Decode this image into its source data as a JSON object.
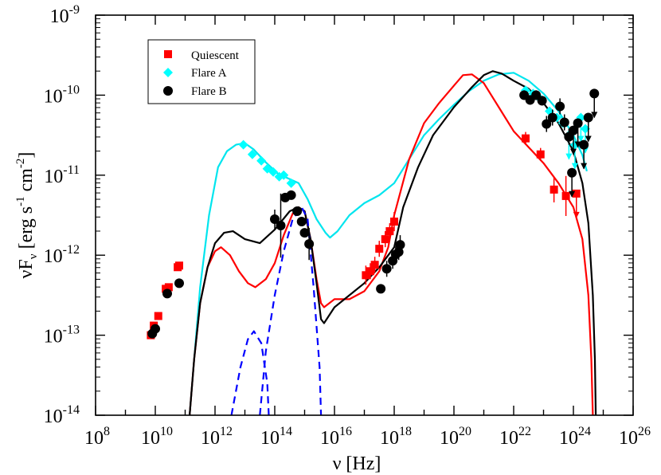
{
  "chart_data": {
    "type": "scatter",
    "xscale": "log",
    "yscale": "log",
    "xlim_exp": [
      8,
      26
    ],
    "ylim_exp": [
      -14,
      -9
    ],
    "xlabel": "ν [Hz]",
    "ylabel_parts": {
      "nu": "ν",
      "F": "F",
      "sub": "ν",
      "unit_open": " [erg s",
      "exp1": "-1",
      "unit_mid": " cm",
      "exp2": "-2",
      "unit_close": "]"
    },
    "x_ticks": [
      8,
      10,
      12,
      14,
      16,
      18,
      20,
      22,
      24,
      26
    ],
    "y_ticks": [
      -14,
      -13,
      -12,
      -11,
      -10,
      -9
    ],
    "legend": [
      {
        "label": "Quiescent",
        "marker": "square",
        "color": "#ff0000"
      },
      {
        "label": "Flare A",
        "marker": "diamond",
        "color": "#00ffff"
      },
      {
        "label": "Flare B",
        "marker": "circle",
        "color": "#000000"
      }
    ],
    "series": [
      {
        "name": "Quiescent",
        "marker": "square",
        "color": "#ff0000",
        "points": [
          {
            "x": 9.85,
            "y": -13.0
          },
          {
            "x": 9.95,
            "y": -12.88
          },
          {
            "x": 10.1,
            "y": -12.76
          },
          {
            "x": 10.35,
            "y": -12.42
          },
          {
            "x": 10.45,
            "y": -12.4
          },
          {
            "x": 10.75,
            "y": -12.15
          },
          {
            "x": 10.8,
            "y": -12.13
          },
          {
            "x": 17.05,
            "y": -12.25,
            "err": 0.12
          },
          {
            "x": 17.2,
            "y": -12.2,
            "err": 0.1
          },
          {
            "x": 17.35,
            "y": -12.12,
            "err": 0.1
          },
          {
            "x": 17.5,
            "y": -11.92,
            "err": 0.1
          },
          {
            "x": 17.7,
            "y": -11.8,
            "err": 0.1
          },
          {
            "x": 17.85,
            "y": -11.7,
            "err": 0.1
          },
          {
            "x": 18.0,
            "y": -11.58,
            "err": 0.12
          },
          {
            "x": 22.4,
            "y": -10.54,
            "err": 0.08
          },
          {
            "x": 22.9,
            "y": -10.74,
            "err": 0.08
          },
          {
            "x": 23.35,
            "y": -11.18,
            "err": 0.16
          },
          {
            "x": 23.75,
            "y": -11.26,
            "err": 0.25
          },
          {
            "x": 24.1,
            "y": -11.23,
            "ul": true
          }
        ]
      },
      {
        "name": "Flare A",
        "marker": "diamond",
        "color": "#00ffff",
        "points": [
          {
            "x": 12.95,
            "y": -10.62
          },
          {
            "x": 13.25,
            "y": -10.74
          },
          {
            "x": 13.55,
            "y": -10.82
          },
          {
            "x": 13.75,
            "y": -10.92
          },
          {
            "x": 13.95,
            "y": -10.96
          },
          {
            "x": 14.15,
            "y": -11.02
          },
          {
            "x": 14.3,
            "y": -11.0
          },
          {
            "x": 14.55,
            "y": -11.1
          },
          {
            "x": 22.4,
            "y": -9.94
          },
          {
            "x": 22.65,
            "y": -9.98
          },
          {
            "x": 22.9,
            "y": -10.05
          },
          {
            "x": 23.2,
            "y": -10.2
          },
          {
            "x": 23.45,
            "y": -10.28
          },
          {
            "x": 23.65,
            "y": -10.35
          },
          {
            "x": 23.85,
            "y": -10.5,
            "ul": true
          },
          {
            "x": 24.05,
            "y": -10.62,
            "ul": true
          },
          {
            "x": 24.25,
            "y": -10.28,
            "ul": true
          },
          {
            "x": 24.4,
            "y": -10.42,
            "ul": true
          }
        ]
      },
      {
        "name": "Flare B",
        "marker": "circle",
        "color": "#000000",
        "points": [
          {
            "x": 9.9,
            "y": -12.98
          },
          {
            "x": 10.0,
            "y": -12.92
          },
          {
            "x": 10.4,
            "y": -12.48
          },
          {
            "x": 10.8,
            "y": -12.35
          },
          {
            "x": 14.0,
            "y": -11.55,
            "err": 0.12
          },
          {
            "x": 14.2,
            "y": -11.63,
            "err": 0.4
          },
          {
            "x": 14.35,
            "y": -11.28
          },
          {
            "x": 14.55,
            "y": -11.25
          },
          {
            "x": 14.75,
            "y": -11.45
          },
          {
            "x": 14.9,
            "y": -11.58
          },
          {
            "x": 15.0,
            "y": -11.72
          },
          {
            "x": 15.15,
            "y": -11.86,
            "err": 0.2
          },
          {
            "x": 17.55,
            "y": -12.42,
            "err": 0.05
          },
          {
            "x": 17.75,
            "y": -12.17,
            "err": 0.1
          },
          {
            "x": 17.95,
            "y": -12.07,
            "err": 0.1
          },
          {
            "x": 18.05,
            "y": -11.99,
            "err": 0.1
          },
          {
            "x": 18.15,
            "y": -11.96,
            "err": 0.1
          },
          {
            "x": 18.2,
            "y": -11.87,
            "err": 0.12
          },
          {
            "x": 22.35,
            "y": -10.0,
            "err": 0.06
          },
          {
            "x": 22.55,
            "y": -10.06,
            "err": 0.06
          },
          {
            "x": 22.75,
            "y": -10.0,
            "err": 0.06
          },
          {
            "x": 22.95,
            "y": -10.07,
            "err": 0.06
          },
          {
            "x": 23.1,
            "y": -10.36,
            "err": 0.1
          },
          {
            "x": 23.3,
            "y": -10.28,
            "err": 0.1
          },
          {
            "x": 23.55,
            "y": -10.14,
            "err": 0.1
          },
          {
            "x": 23.7,
            "y": -10.34,
            "err": 0.1
          },
          {
            "x": 23.85,
            "y": -10.52,
            "err": 0.1
          },
          {
            "x": 24.0,
            "y": -10.44,
            "ul": true
          },
          {
            "x": 24.15,
            "y": -10.35,
            "ul": true
          },
          {
            "x": 24.35,
            "y": -10.62,
            "ul": true
          },
          {
            "x": 24.5,
            "y": -10.28,
            "ul": true
          },
          {
            "x": 24.7,
            "y": -9.98,
            "ul": true
          },
          {
            "x": 23.95,
            "y": -10.97,
            "ul": true
          }
        ]
      }
    ],
    "model_curves": [
      {
        "name": "Flare A model",
        "color": "#00e5ee",
        "dash": "solid",
        "points": [
          [
            11.15,
            -14
          ],
          [
            11.3,
            -13.3
          ],
          [
            11.5,
            -12.4
          ],
          [
            11.8,
            -11.5
          ],
          [
            12.1,
            -10.9
          ],
          [
            12.4,
            -10.7
          ],
          [
            12.7,
            -10.62
          ],
          [
            13.0,
            -10.6
          ],
          [
            13.3,
            -10.68
          ],
          [
            13.7,
            -10.84
          ],
          [
            14.1,
            -10.98
          ],
          [
            14.5,
            -11.05
          ],
          [
            14.8,
            -11.1
          ],
          [
            15.1,
            -11.3
          ],
          [
            15.4,
            -11.55
          ],
          [
            15.7,
            -11.72
          ],
          [
            15.85,
            -11.78
          ],
          [
            16.1,
            -11.7
          ],
          [
            16.5,
            -11.5
          ],
          [
            17.0,
            -11.35
          ],
          [
            17.5,
            -11.25
          ],
          [
            18.0,
            -11.1
          ],
          [
            18.5,
            -10.8
          ],
          [
            19.0,
            -10.5
          ],
          [
            19.5,
            -10.3
          ],
          [
            20.0,
            -10.12
          ],
          [
            20.5,
            -9.95
          ],
          [
            21.0,
            -9.82
          ],
          [
            21.5,
            -9.74
          ],
          [
            22.0,
            -9.72
          ],
          [
            22.5,
            -9.82
          ],
          [
            23.0,
            -9.98
          ],
          [
            23.5,
            -10.2
          ],
          [
            24.0,
            -10.5
          ],
          [
            24.3,
            -10.75
          ],
          [
            24.45,
            -10.95
          ]
        ]
      },
      {
        "name": "Quiescent model",
        "color": "#ff0000",
        "dash": "solid",
        "points": [
          [
            11.15,
            -14
          ],
          [
            11.3,
            -13.3
          ],
          [
            11.5,
            -12.6
          ],
          [
            11.75,
            -12.15
          ],
          [
            12.0,
            -11.95
          ],
          [
            12.2,
            -11.9
          ],
          [
            12.5,
            -12.0
          ],
          [
            12.8,
            -12.2
          ],
          [
            13.1,
            -12.35
          ],
          [
            13.35,
            -12.4
          ],
          [
            13.7,
            -12.3
          ],
          [
            14.0,
            -12.1
          ],
          [
            14.3,
            -11.75
          ],
          [
            14.6,
            -11.48
          ],
          [
            14.8,
            -11.4
          ],
          [
            15.0,
            -11.45
          ],
          [
            15.2,
            -11.8
          ],
          [
            15.4,
            -12.3
          ],
          [
            15.55,
            -12.6
          ],
          [
            15.65,
            -12.65
          ],
          [
            16.0,
            -12.55
          ],
          [
            16.5,
            -12.55
          ],
          [
            17.0,
            -12.45
          ],
          [
            17.5,
            -12.2
          ],
          [
            17.8,
            -11.9
          ],
          [
            18.0,
            -11.5
          ],
          [
            18.5,
            -10.8
          ],
          [
            19.0,
            -10.35
          ],
          [
            19.5,
            -10.1
          ],
          [
            20.0,
            -9.88
          ],
          [
            20.3,
            -9.75
          ],
          [
            20.6,
            -9.74
          ],
          [
            21.0,
            -9.85
          ],
          [
            21.5,
            -10.15
          ],
          [
            22.0,
            -10.45
          ],
          [
            22.5,
            -10.65
          ],
          [
            23.0,
            -10.85
          ],
          [
            23.5,
            -11.1
          ],
          [
            24.0,
            -11.4
          ],
          [
            24.3,
            -11.8
          ],
          [
            24.5,
            -12.5
          ],
          [
            24.6,
            -13.3
          ],
          [
            24.65,
            -14
          ]
        ]
      },
      {
        "name": "Flare B model",
        "color": "#000000",
        "dash": "solid",
        "points": [
          [
            11.15,
            -14
          ],
          [
            11.3,
            -13.3
          ],
          [
            11.5,
            -12.6
          ],
          [
            11.75,
            -12.15
          ],
          [
            12.0,
            -11.85
          ],
          [
            12.3,
            -11.72
          ],
          [
            12.6,
            -11.7
          ],
          [
            13.0,
            -11.8
          ],
          [
            13.5,
            -11.85
          ],
          [
            14.0,
            -11.68
          ],
          [
            14.5,
            -11.45
          ],
          [
            14.8,
            -11.4
          ],
          [
            15.0,
            -11.45
          ],
          [
            15.2,
            -11.8
          ],
          [
            15.4,
            -12.35
          ],
          [
            15.55,
            -12.8
          ],
          [
            15.65,
            -12.85
          ],
          [
            16.0,
            -12.65
          ],
          [
            16.5,
            -12.5
          ],
          [
            17.0,
            -12.35
          ],
          [
            17.5,
            -12.15
          ],
          [
            18.0,
            -11.9
          ],
          [
            18.3,
            -11.4
          ],
          [
            18.8,
            -10.9
          ],
          [
            19.3,
            -10.5
          ],
          [
            20.0,
            -10.15
          ],
          [
            20.6,
            -9.9
          ],
          [
            21.0,
            -9.75
          ],
          [
            21.3,
            -9.7
          ],
          [
            21.6,
            -9.73
          ],
          [
            22.0,
            -9.82
          ],
          [
            22.5,
            -9.92
          ],
          [
            23.0,
            -10.1
          ],
          [
            23.5,
            -10.35
          ],
          [
            24.0,
            -10.7
          ],
          [
            24.3,
            -11.1
          ],
          [
            24.5,
            -11.6
          ],
          [
            24.65,
            -12.5
          ],
          [
            24.72,
            -13.3
          ],
          [
            24.75,
            -14
          ]
        ]
      },
      {
        "name": "Accretion disk (dashed)",
        "color": "#0000ff",
        "dash": "dashed",
        "points": [
          [
            13.5,
            -14
          ],
          [
            13.7,
            -13.2
          ],
          [
            14.0,
            -12.5
          ],
          [
            14.3,
            -11.95
          ],
          [
            14.6,
            -11.55
          ],
          [
            14.9,
            -11.4
          ],
          [
            15.1,
            -11.55
          ],
          [
            15.3,
            -12.4
          ],
          [
            15.5,
            -13.4
          ],
          [
            15.55,
            -14
          ]
        ]
      },
      {
        "name": "Torus (dashed)",
        "color": "#0000ff",
        "dash": "dashed",
        "points": [
          [
            12.55,
            -14
          ],
          [
            12.85,
            -13.4
          ],
          [
            13.1,
            -13.05
          ],
          [
            13.3,
            -12.95
          ],
          [
            13.55,
            -13.1
          ],
          [
            13.75,
            -13.6
          ],
          [
            13.8,
            -14
          ]
        ]
      }
    ]
  }
}
